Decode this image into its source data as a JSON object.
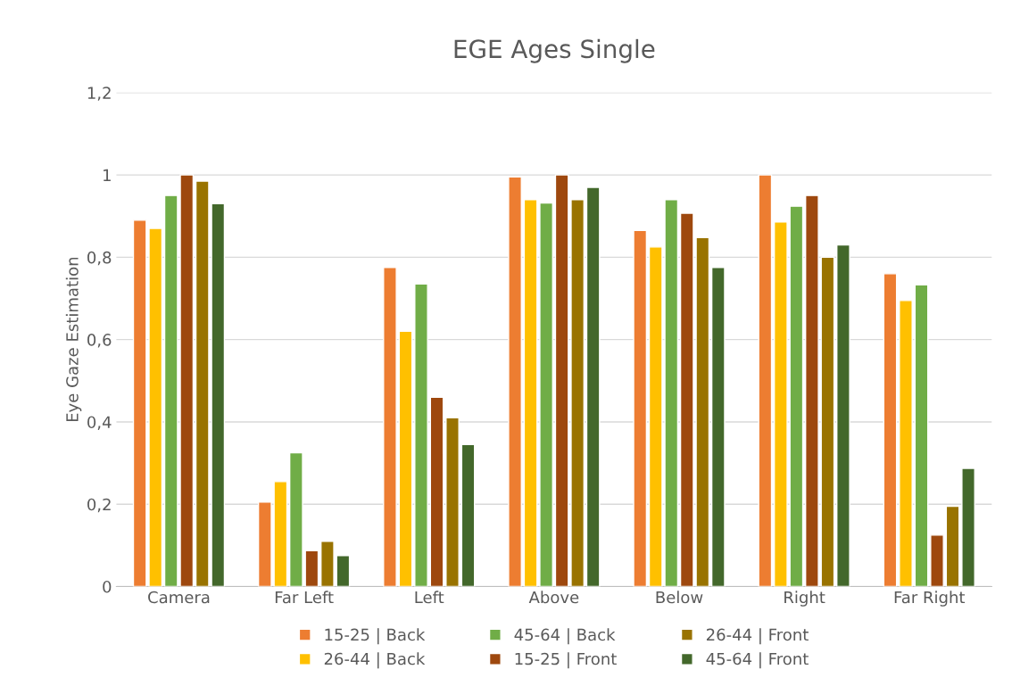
{
  "chart_data": {
    "type": "bar",
    "title": "EGE Ages Single",
    "ylabel": "Eye Gaze Estimation",
    "categories": [
      "Camera",
      "Far Left",
      "Left",
      "Above",
      "Below",
      "Right",
      "Far Right"
    ],
    "series": [
      {
        "name": "15-25 | Back",
        "color": "#ed7d31",
        "values": [
          0.89,
          0.205,
          0.775,
          0.995,
          0.865,
          1.0,
          0.76
        ]
      },
      {
        "name": "26-44 | Back",
        "color": "#ffc000",
        "values": [
          0.87,
          0.255,
          0.62,
          0.94,
          0.825,
          0.886,
          0.695
        ]
      },
      {
        "name": "45-64 | Back",
        "color": "#70ad47",
        "values": [
          0.95,
          0.325,
          0.735,
          0.932,
          0.94,
          0.924,
          0.733
        ]
      },
      {
        "name": "15-25 | Front",
        "color": "#9e480e",
        "values": [
          1.0,
          0.087,
          0.46,
          1.0,
          0.907,
          0.95,
          0.125
        ]
      },
      {
        "name": "26-44 | Front",
        "color": "#997300",
        "values": [
          0.985,
          0.11,
          0.41,
          0.94,
          0.848,
          0.8,
          0.195
        ]
      },
      {
        "name": "45-64 | Front",
        "color": "#43682b",
        "values": [
          0.93,
          0.075,
          0.345,
          0.97,
          0.775,
          0.83,
          0.287
        ]
      }
    ],
    "ylim": [
      0,
      1.2
    ],
    "yticks": [
      0,
      {
        "value": 0.2,
        "label": "0,2"
      },
      {
        "value": 0.4,
        "label": "0,4"
      },
      {
        "value": 0.6,
        "label": "0,6"
      },
      {
        "value": 0.8,
        "label": "0,8"
      },
      1,
      {
        "value": 1.2,
        "label": "1,2"
      }
    ],
    "grid": "y",
    "legend": "bottom"
  }
}
